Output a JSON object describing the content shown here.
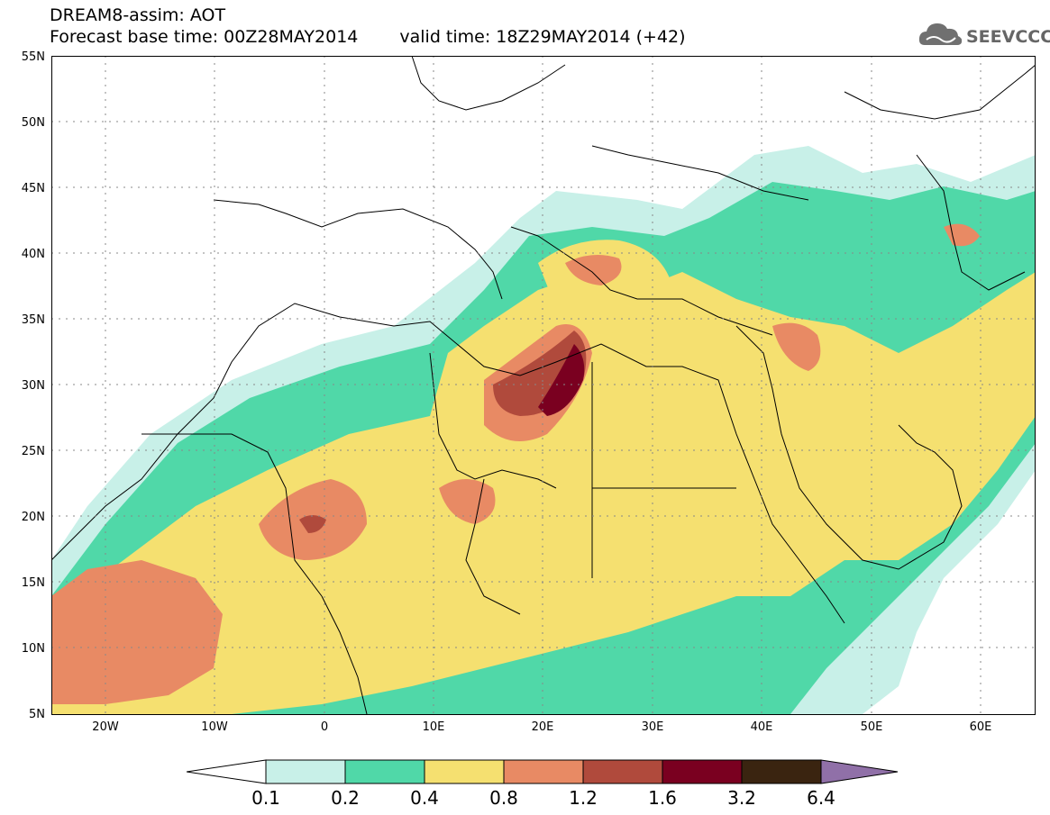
{
  "header": {
    "line1": "DREAM8-assim: AOT",
    "base_time": "Forecast base time: 00Z28MAY2014",
    "valid_time": "valid time: 18Z29MAY2014 (+42)"
  },
  "logo": {
    "text": "SEEVCCC",
    "icon": "cloud-icon"
  },
  "map": {
    "lon_range": [
      -25,
      65
    ],
    "lat_range": [
      5,
      55
    ],
    "y_ticks": [
      "55N",
      "50N",
      "45N",
      "40N",
      "35N",
      "30N",
      "25N",
      "20N",
      "15N",
      "10N",
      "5N"
    ],
    "x_ticks": [
      "20W",
      "10W",
      "0",
      "10E",
      "20E",
      "30E",
      "40E",
      "50E",
      "60E"
    ],
    "grid": "dotted"
  },
  "colorbar": {
    "labels": [
      "0.1",
      "0.2",
      "0.4",
      "0.8",
      "1.2",
      "1.6",
      "3.2",
      "6.4"
    ],
    "colors": [
      "#ffffff",
      "#c8f0e8",
      "#50d8a8",
      "#f5e070",
      "#e88a64",
      "#b04a3c",
      "#7a0020",
      "#3a2410",
      "#9070a8"
    ]
  }
}
